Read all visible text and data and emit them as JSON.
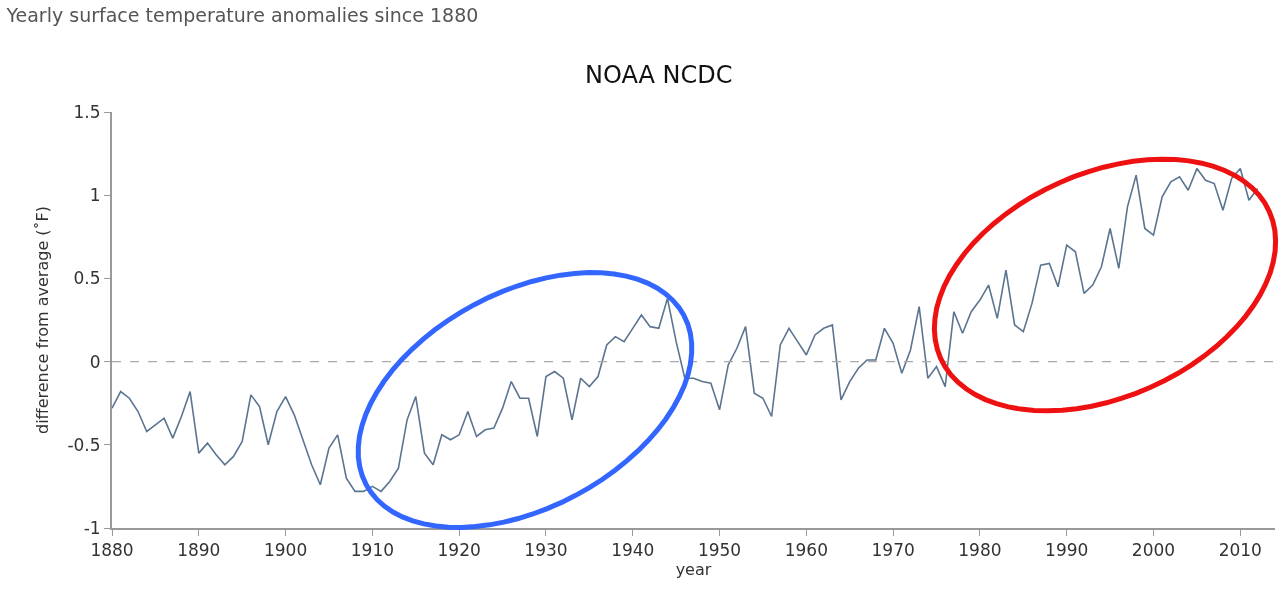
{
  "chart_data": {
    "type": "line",
    "title": "Yearly surface temperature anomalies since 1880",
    "subtitle": "NOAA NCDC",
    "xlabel": "year",
    "ylabel": "difference from average (˚F)",
    "x": [
      1880,
      1881,
      1882,
      1883,
      1884,
      1885,
      1886,
      1887,
      1888,
      1889,
      1890,
      1891,
      1892,
      1893,
      1894,
      1895,
      1896,
      1897,
      1898,
      1899,
      1900,
      1901,
      1902,
      1903,
      1904,
      1905,
      1906,
      1907,
      1908,
      1909,
      1910,
      1911,
      1912,
      1913,
      1914,
      1915,
      1916,
      1917,
      1918,
      1919,
      1920,
      1921,
      1922,
      1923,
      1924,
      1925,
      1926,
      1927,
      1928,
      1929,
      1930,
      1931,
      1932,
      1933,
      1934,
      1935,
      1936,
      1937,
      1938,
      1939,
      1940,
      1941,
      1942,
      1943,
      1944,
      1945,
      1946,
      1947,
      1948,
      1949,
      1950,
      1951,
      1952,
      1953,
      1954,
      1955,
      1956,
      1957,
      1958,
      1959,
      1960,
      1961,
      1962,
      1963,
      1964,
      1965,
      1966,
      1967,
      1968,
      1969,
      1970,
      1971,
      1972,
      1973,
      1974,
      1975,
      1976,
      1977,
      1978,
      1979,
      1980,
      1981,
      1982,
      1983,
      1984,
      1985,
      1986,
      1987,
      1988,
      1989,
      1990,
      1991,
      1992,
      1993,
      1994,
      1995,
      1996,
      1997,
      1998,
      1999,
      2000,
      2001,
      2002,
      2003,
      2004,
      2005,
      2006,
      2007,
      2008,
      2009,
      2010,
      2011,
      2012
    ],
    "series": [
      {
        "color": "#5b7590",
        "values": [
          -0.28,
          -0.18,
          -0.22,
          -0.3,
          -0.42,
          -0.38,
          -0.34,
          -0.46,
          -0.33,
          -0.18,
          -0.55,
          -0.49,
          -0.56,
          -0.62,
          -0.57,
          -0.48,
          -0.2,
          -0.27,
          -0.5,
          -0.3,
          -0.21,
          -0.32,
          -0.47,
          -0.62,
          -0.74,
          -0.52,
          -0.44,
          -0.7,
          -0.78,
          -0.78,
          -0.75,
          -0.78,
          -0.72,
          -0.64,
          -0.35,
          -0.21,
          -0.55,
          -0.62,
          -0.44,
          -0.47,
          -0.44,
          -0.3,
          -0.45,
          -0.41,
          -0.4,
          -0.28,
          -0.12,
          -0.22,
          -0.22,
          -0.45,
          -0.09,
          -0.06,
          -0.1,
          -0.35,
          -0.1,
          -0.15,
          -0.09,
          0.1,
          0.15,
          0.12,
          0.2,
          0.28,
          0.21,
          0.2,
          0.38,
          0.12,
          -0.1,
          -0.1,
          -0.12,
          -0.13,
          -0.29,
          -0.02,
          0.08,
          0.21,
          -0.19,
          -0.22,
          -0.33,
          0.1,
          0.2,
          0.12,
          0.04,
          0.16,
          0.2,
          0.22,
          -0.23,
          -0.12,
          -0.04,
          0.01,
          0.01,
          0.2,
          0.11,
          -0.07,
          0.07,
          0.33,
          -0.1,
          -0.03,
          -0.15,
          0.3,
          0.17,
          0.3,
          0.37,
          0.46,
          0.26,
          0.55,
          0.22,
          0.18,
          0.35,
          0.58,
          0.59,
          0.45,
          0.7,
          0.66,
          0.41,
          0.46,
          0.57,
          0.8,
          0.56,
          0.93,
          1.12,
          0.8,
          0.76,
          0.99,
          1.08,
          1.11,
          1.03,
          1.16,
          1.09,
          1.07,
          0.91,
          1.1,
          1.16,
          0.97,
          1.04
        ]
      }
    ],
    "xlim": [
      1880,
      2014
    ],
    "xticks": [
      1880,
      1890,
      1900,
      1910,
      1920,
      1930,
      1940,
      1950,
      1960,
      1970,
      1980,
      1990,
      2000,
      2010
    ],
    "ylim": [
      -1,
      1.5
    ],
    "yticks": [
      -1,
      -0.5,
      0,
      0.5,
      1,
      1.5
    ],
    "marker": "none",
    "line_style": "solid",
    "ref_lines": [
      {
        "axis": "y",
        "value": 0,
        "color": "#aaaaaa",
        "line_style": "dashed"
      }
    ]
  }
}
